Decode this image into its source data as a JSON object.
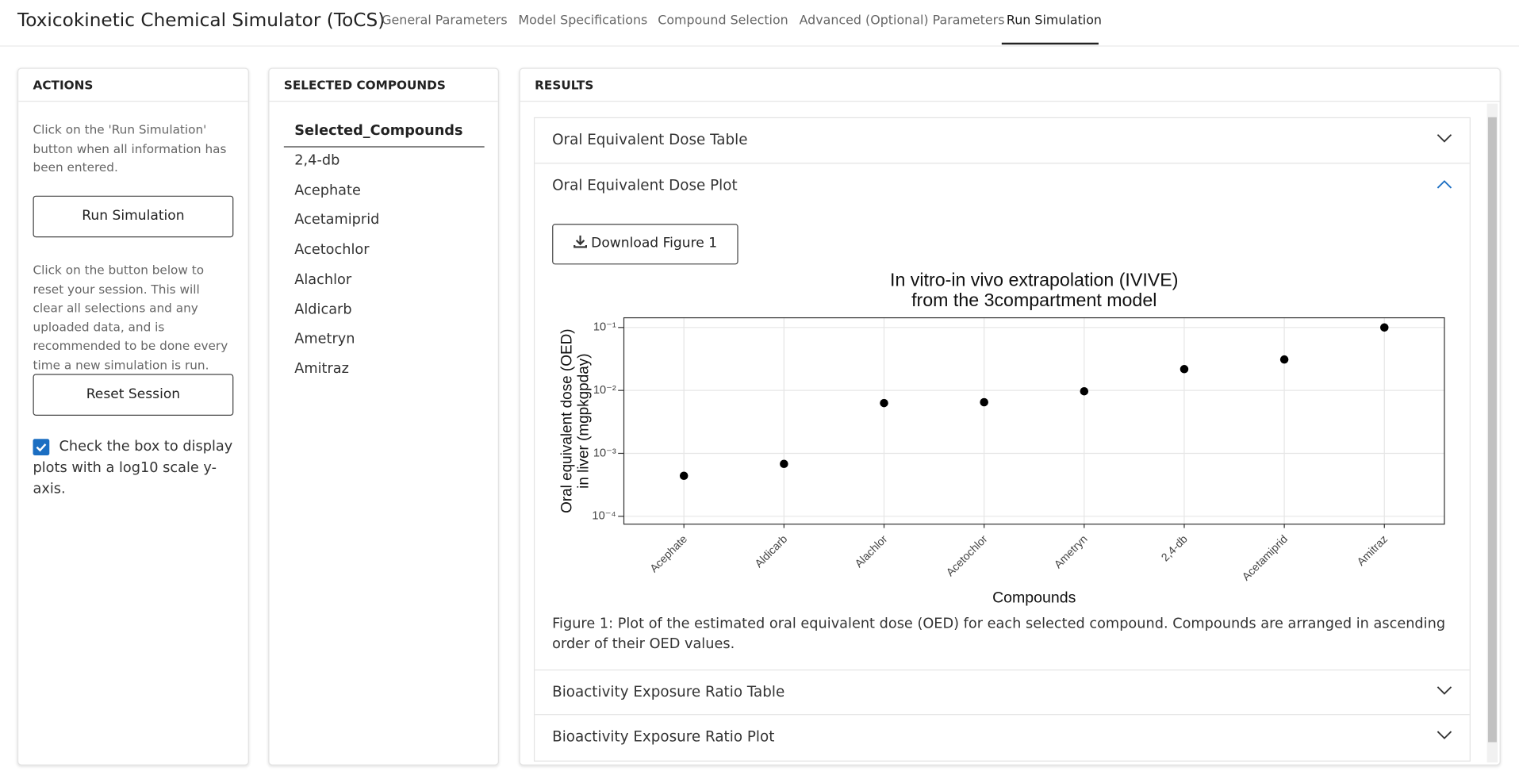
{
  "header": {
    "title": "Toxicokinetic Chemical Simulator (ToCS)",
    "tabs": [
      "General Parameters",
      "Model Specifications",
      "Compound Selection",
      "Advanced (Optional) Parameters",
      "Run Simulation"
    ]
  },
  "actions": {
    "heading": "ACTIONS",
    "run_text": "Click on the 'Run Simulation' button when all information has been entered.",
    "run_button": "Run Simulation",
    "reset_text": "Click on the button below to reset your session. This will clear all selections and any uploaded data, and is recommended to be done every time a new simulation is run.",
    "reset_button": "Reset Session",
    "checkbox_label": "Check the box to display plots with a log10 scale y-axis.",
    "checked": true
  },
  "selected": {
    "heading": "SELECTED COMPOUNDS",
    "column": "Selected_Compounds",
    "rows": [
      "2,4-db",
      "Acephate",
      "Acetamiprid",
      "Acetochlor",
      "Alachlor",
      "Aldicarb",
      "Ametryn",
      "Amitraz"
    ]
  },
  "results": {
    "heading": "RESULTS",
    "panels": [
      "Oral Equivalent Dose Table",
      "Oral Equivalent Dose Plot",
      "Bioactivity Exposure Ratio Table",
      "Bioactivity Exposure Ratio Plot"
    ],
    "download_button": "Download Figure 1",
    "caption": "Figure 1: Plot of the estimated oral equivalent dose (OED) for each selected compound. Compounds are arranged in ascending order of their OED values."
  },
  "chart_data": {
    "type": "scatter",
    "title": "In vitro-in vivo extrapolation (IVIVE)",
    "subtitle": "from the 3compartment model",
    "xlabel": "Compounds",
    "ylabel": [
      "Oral equivalent dose (OED)",
      "in liver (mgpkgpday)"
    ],
    "categories": [
      "Acephate",
      "Aldicarb",
      "Alachlor",
      "Acetochlor",
      "Ametryn",
      "2,4-db",
      "Acetamiprid",
      "Amitraz"
    ],
    "values": [
      0.00044,
      0.00068,
      0.0063,
      0.0065,
      0.0097,
      0.0218,
      0.031,
      0.1
    ],
    "color": "#000000",
    "log_y": true,
    "ylim": [
      7.5e-05,
      0.1426
    ],
    "yticks": [
      {
        "value": 0.1,
        "label": "10⁻¹"
      },
      {
        "value": 0.01,
        "label": "10⁻²"
      },
      {
        "value": 0.001,
        "label": "10⁻³"
      },
      {
        "value": 0.0001,
        "label": "10⁻⁴"
      }
    ],
    "grid": true
  }
}
